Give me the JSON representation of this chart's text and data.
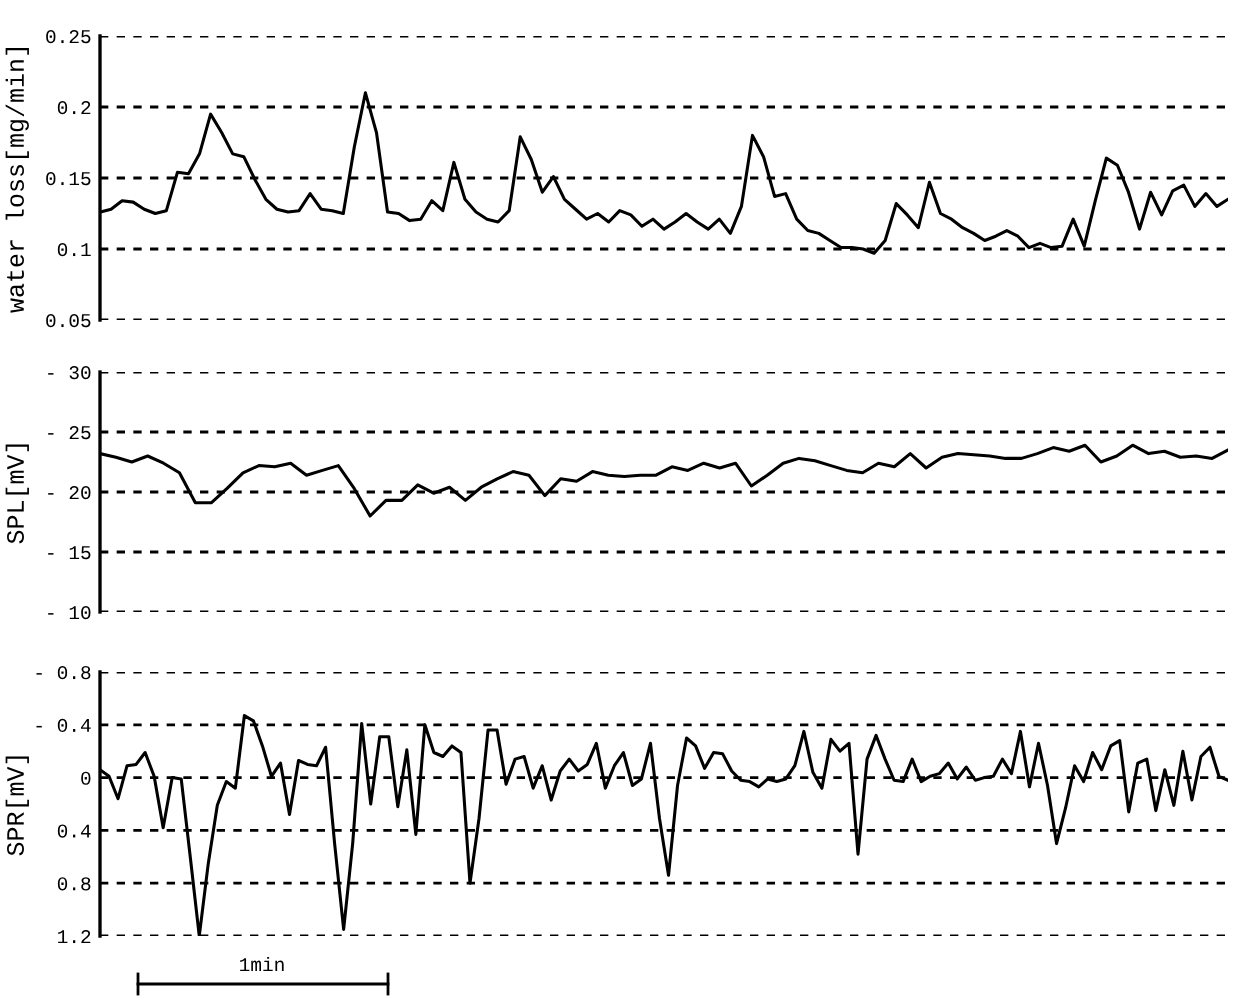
{
  "chart_data": [
    {
      "type": "line",
      "ylabel": "water loss[mg/min]",
      "tick_labels": "y",
      "grid": "y",
      "legend": false,
      "ylim": [
        0.05,
        0.25
      ],
      "yticks": [
        0.05,
        0.1,
        0.15,
        0.2,
        0.25
      ],
      "categories": [
        null,
        null,
        null,
        null,
        null,
        null,
        null,
        null,
        null,
        null,
        null,
        null,
        null,
        null,
        null,
        null,
        null,
        null,
        null,
        null,
        null,
        null,
        null,
        null,
        null,
        null,
        null,
        null,
        null,
        null,
        null,
        null,
        null,
        null,
        null,
        null,
        null,
        null,
        null,
        null,
        null,
        null,
        null,
        null,
        null,
        null,
        null,
        null,
        null,
        null,
        null,
        null,
        null,
        null,
        null,
        null,
        null,
        null,
        null,
        null,
        null,
        null,
        null,
        null,
        null,
        null,
        null,
        null,
        null,
        null,
        null,
        null,
        null,
        null,
        null,
        null,
        null,
        null,
        null,
        null,
        null,
        null,
        null,
        null,
        null,
        null,
        null,
        null,
        null,
        null,
        null,
        null,
        null,
        null,
        null,
        null,
        null,
        null,
        null,
        null,
        null,
        null,
        null
      ],
      "series": [
        {
          "color": "#000000",
          "values": [
            0.126,
            0.128,
            0.134,
            0.133,
            0.128,
            0.125,
            0.127,
            0.154,
            0.153,
            0.167,
            0.195,
            0.182,
            0.167,
            0.165,
            0.149,
            0.135,
            0.128,
            0.126,
            0.127,
            0.139,
            0.128,
            0.127,
            0.125,
            0.172,
            0.21,
            0.182,
            0.126,
            0.125,
            0.12,
            0.121,
            0.134,
            0.127,
            0.161,
            0.135,
            0.126,
            0.121,
            0.119,
            0.127,
            0.179,
            0.163,
            0.14,
            0.151,
            0.135,
            0.128,
            0.121,
            0.125,
            0.119,
            0.127,
            0.124,
            0.116,
            0.121,
            0.114,
            0.119,
            0.125,
            0.119,
            0.114,
            0.121,
            0.111,
            0.13,
            0.18,
            0.165,
            0.137,
            0.139,
            0.121,
            0.113,
            0.111,
            0.106,
            0.101,
            0.101,
            0.1,
            0.097,
            0.106,
            0.132,
            0.124,
            0.115,
            0.147,
            0.125,
            0.121,
            0.115,
            0.111,
            0.106,
            0.109,
            0.113,
            0.109,
            0.101,
            0.104,
            0.101,
            0.102,
            0.121,
            0.102,
            0.134,
            0.164,
            0.159,
            0.14,
            0.114,
            0.14,
            0.124,
            0.141,
            0.145,
            0.13,
            0.139,
            0.13,
            0.135
          ]
        }
      ]
    },
    {
      "type": "line",
      "ylabel": "SPL[mV]",
      "tick_labels": "y",
      "grid": "y",
      "legend": false,
      "ylim": [
        -10,
        -30
      ],
      "yticks": [
        {
          "value": -30,
          "label": "- 30"
        },
        {
          "value": -25,
          "label": "- 25"
        },
        {
          "value": -20,
          "label": "- 20"
        },
        {
          "value": -15,
          "label": "- 15"
        },
        {
          "value": -10,
          "label": "- 10"
        }
      ],
      "categories": [
        null,
        null,
        null,
        null,
        null,
        null,
        null,
        null,
        null,
        null,
        null,
        null,
        null,
        null,
        null,
        null,
        null,
        null,
        null,
        null,
        null,
        null,
        null,
        null,
        null,
        null,
        null,
        null,
        null,
        null,
        null,
        null,
        null,
        null,
        null,
        null,
        null,
        null,
        null,
        null,
        null,
        null,
        null,
        null,
        null,
        null,
        null,
        null,
        null,
        null,
        null,
        null,
        null,
        null,
        null,
        null,
        null,
        null,
        null,
        null,
        null,
        null,
        null,
        null,
        null,
        null,
        null,
        null,
        null,
        null,
        null,
        null
      ],
      "series": [
        {
          "color": "#000000",
          "values": [
            -23.2,
            -22.9,
            -22.5,
            -23.0,
            -22.4,
            -21.6,
            -19.1,
            -19.1,
            -20.3,
            -21.6,
            -22.2,
            -22.1,
            -22.4,
            -21.4,
            -21.8,
            -22.2,
            -20.3,
            -18.0,
            -19.3,
            -19.3,
            -20.6,
            -19.9,
            -20.4,
            -19.3,
            -20.4,
            -21.1,
            -21.7,
            -21.4,
            -19.7,
            -21.1,
            -20.9,
            -21.7,
            -21.4,
            -21.3,
            -21.4,
            -21.4,
            -22.1,
            -21.8,
            -22.4,
            -22.0,
            -22.4,
            -20.5,
            -21.4,
            -22.4,
            -22.8,
            -22.6,
            -22.2,
            -21.8,
            -21.6,
            -22.4,
            -22.1,
            -23.2,
            -22.0,
            -22.9,
            -23.2,
            -23.1,
            -23.0,
            -22.8,
            -22.8,
            -23.2,
            -23.7,
            -23.4,
            -23.9,
            -22.5,
            -23.0,
            -23.9,
            -23.2,
            -23.4,
            -22.9,
            -23.0,
            -22.8,
            -23.5
          ]
        }
      ]
    },
    {
      "type": "line",
      "ylabel": "SPR[mV]",
      "tick_labels": "y",
      "grid": "y",
      "legend": false,
      "ylim": [
        1.2,
        -0.8
      ],
      "yticks": [
        {
          "value": -0.8,
          "label": "- 0.8"
        },
        {
          "value": -0.4,
          "label": "- 0.4"
        },
        0,
        0.4,
        0.8,
        1.2
      ],
      "annotations": [
        "1min"
      ],
      "categories": [
        null,
        null,
        null,
        null,
        null,
        null,
        null,
        null,
        null,
        null,
        null,
        null,
        null,
        null,
        null,
        null,
        null,
        null,
        null,
        null,
        null,
        null,
        null,
        null,
        null,
        null,
        null,
        null,
        null,
        null,
        null,
        null,
        null,
        null,
        null,
        null,
        null,
        null,
        null,
        null,
        null,
        null,
        null,
        null,
        null,
        null,
        null,
        null,
        null,
        null,
        null,
        null,
        null,
        null,
        null,
        null,
        null,
        null,
        null,
        null,
        null,
        null,
        null,
        null,
        null,
        null,
        null,
        null,
        null,
        null,
        null,
        null,
        null,
        null,
        null,
        null,
        null,
        null,
        null,
        null,
        null,
        null,
        null,
        null,
        null,
        null,
        null,
        null,
        null,
        null,
        null,
        null,
        null,
        null,
        null,
        null,
        null,
        null,
        null,
        null,
        null,
        null,
        null,
        null,
        null,
        null,
        null,
        null,
        null,
        null,
        null,
        null,
        null,
        null,
        null,
        null,
        null,
        null,
        null,
        null,
        null,
        null,
        null,
        null,
        null,
        null
      ],
      "series": [
        {
          "color": "#000000",
          "values": [
            -0.06,
            -0.01,
            0.16,
            -0.09,
            -0.1,
            -0.19,
            -0.01,
            0.38,
            0,
            0.01,
            0.6,
            1.2,
            0.65,
            0.21,
            0.03,
            0.08,
            -0.47,
            -0.43,
            -0.24,
            -0.01,
            -0.11,
            0.28,
            -0.13,
            -0.1,
            -0.09,
            -0.23,
            0.5,
            1.15,
            0.5,
            -0.41,
            0.2,
            -0.31,
            -0.31,
            0.22,
            -0.21,
            0.43,
            -0.4,
            -0.19,
            -0.16,
            -0.24,
            -0.19,
            0.8,
            0.31,
            -0.36,
            -0.36,
            0.05,
            -0.14,
            -0.16,
            0.08,
            -0.09,
            0.17,
            -0.05,
            -0.14,
            -0.05,
            -0.1,
            -0.26,
            0.08,
            -0.09,
            -0.19,
            0.06,
            0.01,
            -0.26,
            0.31,
            0.74,
            0.06,
            -0.3,
            -0.24,
            -0.07,
            -0.19,
            -0.18,
            -0.05,
            0.02,
            0.03,
            0.07,
            0.01,
            0.03,
            0.01,
            -0.09,
            -0.35,
            -0.04,
            0.08,
            -0.29,
            -0.2,
            -0.26,
            0.58,
            -0.14,
            -0.32,
            -0.14,
            0.02,
            0.03,
            -0.14,
            0.03,
            -0.01,
            -0.03,
            -0.11,
            0.01,
            -0.08,
            0.02,
            0,
            -0.01,
            -0.14,
            -0.03,
            -0.35,
            0.07,
            -0.26,
            0.06,
            0.5,
            0.23,
            -0.09,
            0.03,
            -0.19,
            -0.06,
            -0.24,
            -0.28,
            0.26,
            -0.11,
            -0.14,
            0.25,
            -0.06,
            0.21,
            -0.2,
            0.17,
            -0.16,
            -0.23,
            -0.01,
            0.02
          ]
        }
      ]
    }
  ]
}
